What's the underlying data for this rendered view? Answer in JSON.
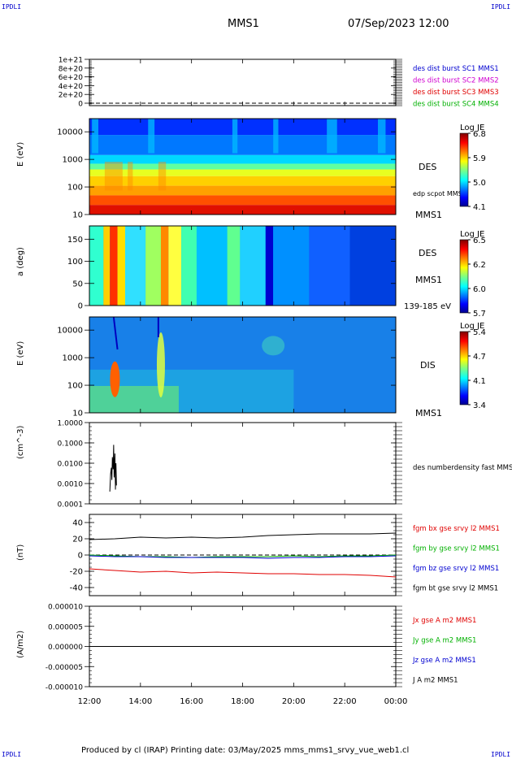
{
  "corner_label": "IPDLI",
  "header": {
    "spacecraft": "MMS1",
    "datetime": "07/Sep/2023 12:00"
  },
  "footer": "Produced by cl (IRAP)   Printing date: 03/May/2025   mms_mms1_srvy_vue_web1.cl",
  "colors": {
    "red": "#e00000",
    "green": "#00b000",
    "blue": "#0000d0",
    "magenta": "#d000d0",
    "black": "#000000"
  },
  "chart_data": [
    {
      "type": "line",
      "panel": "des-dist-burst",
      "y_ticks": [
        "0",
        "2e+20",
        "4e+20",
        "6e+20",
        "8e+20",
        "1e+21"
      ],
      "legend": [
        {
          "name": "des dist burst SC1 MMS1",
          "color": "#0000d0"
        },
        {
          "name": "des dist burst SC2 MMS2",
          "color": "#d000d0"
        },
        {
          "name": "des dist burst SC3 MMS3",
          "color": "#e00000"
        },
        {
          "name": "des dist burst SC4 MMS4",
          "color": "#00b000"
        }
      ],
      "series": [
        {
          "name": "",
          "values": [
            0,
            0
          ]
        }
      ]
    },
    {
      "type": "heatmap",
      "panel": "des-energy-spectrogram",
      "ylabel": "E (eV)",
      "yscale": "log",
      "ylim": [
        10,
        30000
      ],
      "y_ticks": [
        "10",
        "100",
        "1000",
        "10000"
      ],
      "label": "DES",
      "overlay_label": "edp scpot MMS1",
      "sc_label": "MMS1",
      "colorbar": {
        "title": "Log JE",
        "ticks": [
          "4.1",
          "5.0",
          "5.9",
          "6.8"
        ]
      }
    },
    {
      "type": "heatmap",
      "panel": "des-pitch-angle",
      "ylabel": "a (deg)",
      "ylim": [
        0,
        180
      ],
      "y_ticks": [
        "0",
        "50",
        "100",
        "150"
      ],
      "label": "DES",
      "sc_label": "MMS1",
      "energy_range": "139-185 eV",
      "colorbar": {
        "title": "Log JE",
        "ticks": [
          "5.7",
          "6.0",
          "6.2",
          "6.5"
        ]
      }
    },
    {
      "type": "heatmap",
      "panel": "dis-energy-spectrogram",
      "ylabel": "E (eV)",
      "yscale": "log",
      "ylim": [
        10,
        30000
      ],
      "y_ticks": [
        "10",
        "100",
        "1000",
        "10000"
      ],
      "label": "DIS",
      "sc_label": "MMS1",
      "colorbar": {
        "title": "Log JE",
        "ticks": [
          "3.4",
          "4.1",
          "4.7",
          "5.4"
        ]
      }
    },
    {
      "type": "line",
      "panel": "des-number-density",
      "ylabel": "(cm^-3)",
      "yscale": "log",
      "ylim": [
        0.0001,
        1.0
      ],
      "y_ticks": [
        "0.0001",
        "0.0010",
        "0.0100",
        "0.1000",
        "1.0000"
      ],
      "legend": [
        {
          "name": "des numberdensity fast MMS1",
          "color": "#000000"
        }
      ],
      "series": [
        {
          "name": "des numberdensity fast MMS1",
          "x": [
            12.8,
            12.83,
            12.86,
            12.88,
            12.9,
            12.93,
            12.95,
            12.97,
            13.0,
            13.02,
            13.04,
            13.06
          ],
          "values": [
            0.0004,
            0.003,
            0.006,
            0.0015,
            0.02,
            0.005,
            0.08,
            0.002,
            0.03,
            0.0005,
            0.01,
            0.0008
          ]
        }
      ]
    },
    {
      "type": "line",
      "panel": "fgm-b",
      "ylabel": "(nT)",
      "ylim": [
        -50,
        50
      ],
      "y_ticks": [
        "-40",
        "-20",
        "0",
        "20",
        "40"
      ],
      "legend": [
        {
          "name": "fgm bx gse srvy l2 MMS1",
          "color": "#e00000"
        },
        {
          "name": "fgm by gse srvy l2 MMS1",
          "color": "#00b000"
        },
        {
          "name": "fgm bz gse srvy l2 MMS1",
          "color": "#0000d0"
        },
        {
          "name": "fgm bt gse srvy l2 MMS1",
          "color": "#000000"
        }
      ],
      "x": [
        12,
        13,
        14,
        15,
        16,
        17,
        18,
        19,
        20,
        21,
        22,
        23,
        24
      ],
      "series": [
        {
          "name": "fgm bx gse srvy l2 MMS1",
          "values": [
            -17,
            -19,
            -21,
            -20,
            -22,
            -21,
            -22,
            -23,
            -23,
            -24,
            -24,
            -25,
            -27
          ]
        },
        {
          "name": "fgm by gse srvy l2 MMS1",
          "values": [
            0,
            -1,
            -2,
            -2,
            -3,
            -2,
            -2,
            -2,
            -1,
            -2,
            -1,
            -1,
            0
          ]
        },
        {
          "name": "fgm bz gse srvy l2 MMS1",
          "values": [
            -1,
            -2,
            -2,
            -3,
            -3,
            -3,
            -3,
            -4,
            -3,
            -3,
            -2,
            -2,
            -1
          ]
        },
        {
          "name": "fgm bt gse srvy l2 MMS1",
          "values": [
            19,
            20,
            22,
            21,
            22,
            21,
            22,
            24,
            25,
            26,
            26,
            26,
            27
          ]
        }
      ]
    },
    {
      "type": "line",
      "panel": "current-density",
      "ylabel": "(A/m2)",
      "ylim": [
        -1e-05,
        1e-05
      ],
      "y_ticks": [
        "-0.000010",
        "-0.000005",
        "0.000000",
        "0.000005",
        "0.000010"
      ],
      "legend": [
        {
          "name": "Jx gse A m2 MMS1",
          "color": "#e00000"
        },
        {
          "name": "Jy gse A m2 MMS1",
          "color": "#00b000"
        },
        {
          "name": "Jz gse A m2 MMS1",
          "color": "#0000d0"
        },
        {
          "name": "J A m2 MMS1",
          "color": "#000000"
        }
      ],
      "series": [
        {
          "name": "",
          "values": [
            0,
            0
          ]
        }
      ]
    }
  ],
  "time_axis": {
    "xlim": [
      12,
      24
    ],
    "ticks": [
      "12:00",
      "14:00",
      "16:00",
      "18:00",
      "20:00",
      "22:00",
      "00:00"
    ]
  }
}
